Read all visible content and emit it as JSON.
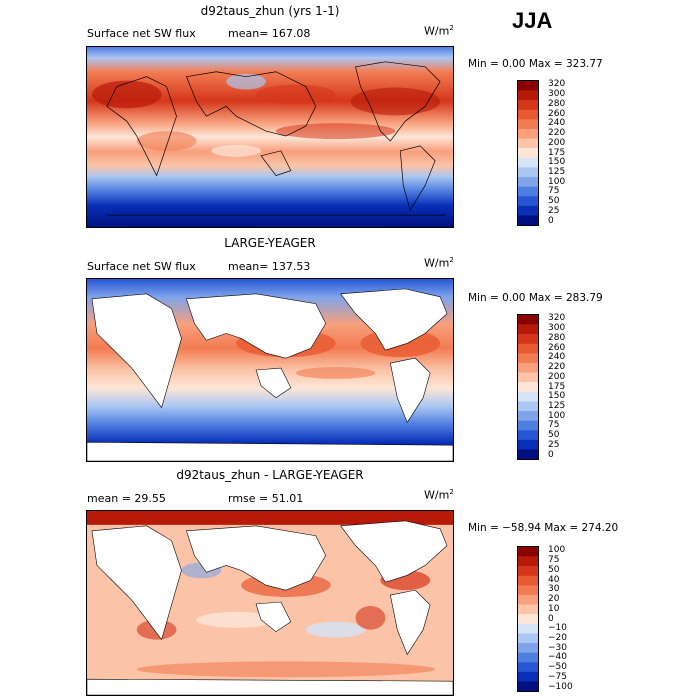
{
  "season": "JJA",
  "unit_text": "W/m",
  "unit_exp": "2",
  "panels": [
    {
      "title": "d92taus_zhun (yrs 1-1)",
      "left_label": "Surface net SW flux",
      "stat": "mean= 167.08",
      "minmax": "Min =     0.00 Max = 323.77",
      "mean_value": 167.08,
      "colorbar": {
        "labels": [
          "320",
          "300",
          "280",
          "260",
          "240",
          "220",
          "200",
          "175",
          "150",
          "125",
          "100",
          "75",
          "50",
          "25",
          "0"
        ],
        "colors": [
          "#8b0000",
          "#b81a0a",
          "#d5361a",
          "#e85a32",
          "#f27c52",
          "#f89f7c",
          "#fbc4a8",
          "#fde6d8",
          "#d6e4f8",
          "#aac6f2",
          "#7fa4ea",
          "#4e7ee0",
          "#2656d4",
          "#0a30b8",
          "#001080"
        ]
      }
    },
    {
      "title": "LARGE-YEAGER",
      "left_label": "Surface net SW flux",
      "stat": "mean= 137.53",
      "minmax": "Min =     0.00 Max = 283.79",
      "mean_value": 137.53,
      "colorbar": {
        "labels": [
          "320",
          "300",
          "280",
          "260",
          "240",
          "220",
          "200",
          "175",
          "150",
          "125",
          "100",
          "75",
          "50",
          "25",
          "0"
        ],
        "colors": [
          "#8b0000",
          "#b81a0a",
          "#d5361a",
          "#e85a32",
          "#f27c52",
          "#f89f7c",
          "#fbc4a8",
          "#fde6d8",
          "#d6e4f8",
          "#aac6f2",
          "#7fa4ea",
          "#4e7ee0",
          "#2656d4",
          "#0a30b8",
          "#001080"
        ]
      }
    },
    {
      "title": "d92taus_zhun - LARGE-YEAGER",
      "left_label": "mean =   29.55",
      "stat": "rmse =   51.01",
      "minmax": "Min = −58.94 Max = 274.20",
      "mean_value": 29.55,
      "rmse_value": 51.01,
      "colorbar": {
        "labels": [
          "100",
          "75",
          "50",
          "40",
          "30",
          "20",
          "10",
          "0",
          "−10",
          "−20",
          "−30",
          "−40",
          "−50",
          "−75",
          "−100"
        ],
        "colors": [
          "#8b0000",
          "#b81a0a",
          "#d5361a",
          "#e85a32",
          "#f27c52",
          "#f89f7c",
          "#fbc4a8",
          "#fde6d8",
          "#d6e4f8",
          "#aac6f2",
          "#7fa4ea",
          "#4e7ee0",
          "#2656d4",
          "#0a30b8",
          "#001080"
        ]
      }
    }
  ]
}
